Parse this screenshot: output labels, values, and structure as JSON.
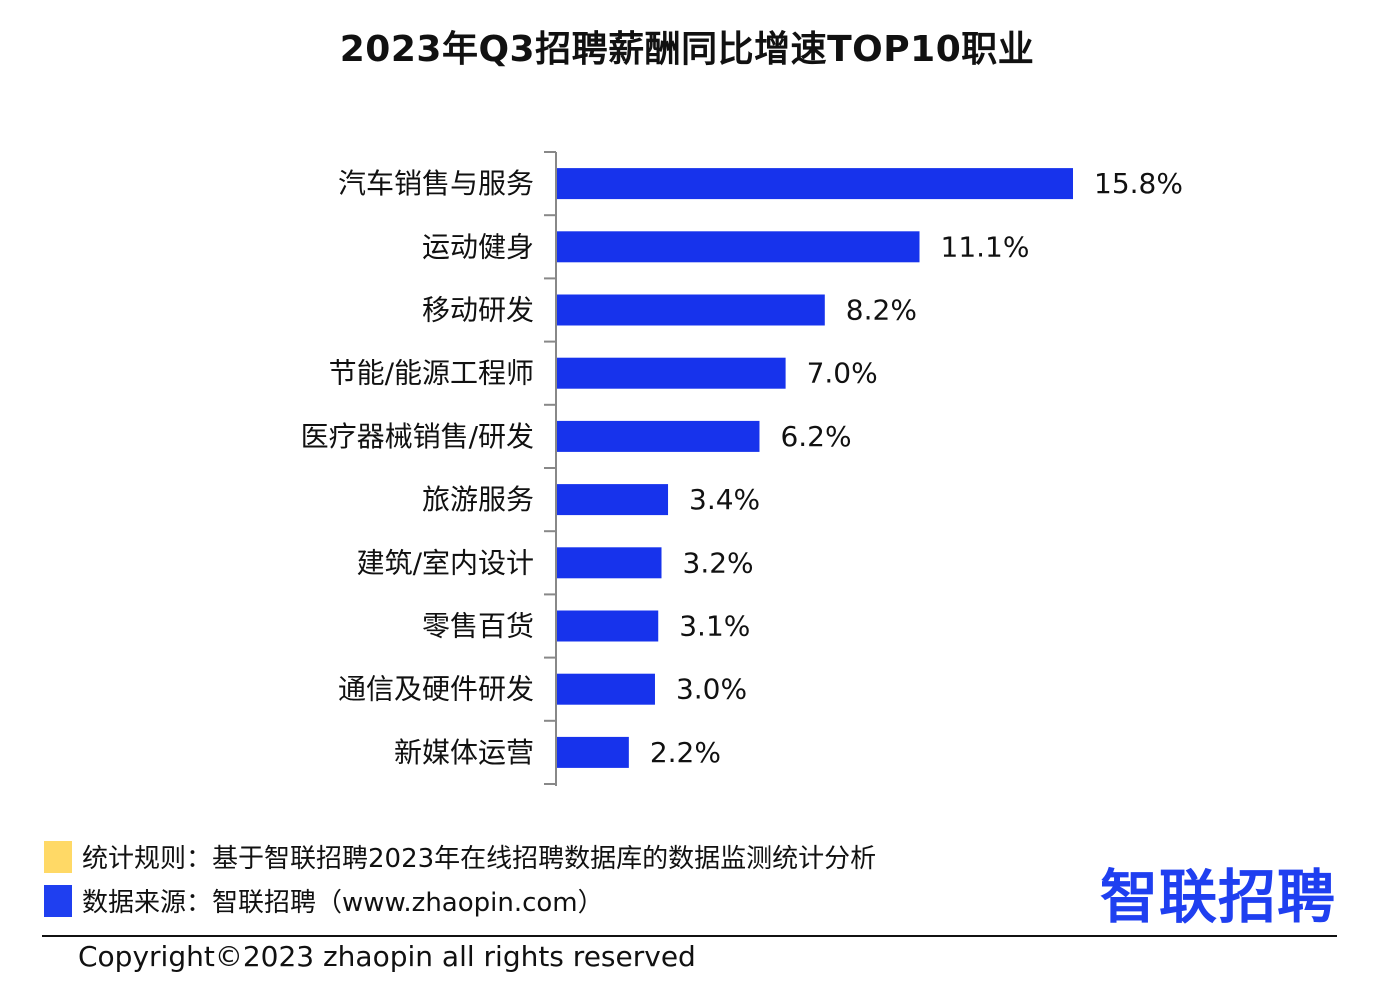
{
  "chart_data": {
    "type": "bar",
    "orientation": "horizontal",
    "title": "2023年Q3招聘薪酬同比增速TOP10职业",
    "categories": [
      "汽车销售与服务",
      "运动健身",
      "移动研发",
      "节能/能源工程师",
      "医疗器械销售/研发",
      "旅游服务",
      "建筑/室内设计",
      "零售百货",
      "通信及硬件研发",
      "新媒体运营"
    ],
    "values": [
      15.8,
      11.1,
      8.2,
      7.0,
      6.2,
      3.4,
      3.2,
      3.1,
      3.0,
      2.2
    ],
    "value_labels": [
      "15.8%",
      "11.1%",
      "8.2%",
      "7.0%",
      "6.2%",
      "3.4%",
      "3.2%",
      "3.1%",
      "3.0%",
      "2.2%"
    ],
    "unit": "%",
    "xlim": [
      0,
      15.8
    ],
    "bar_color": "#1733EC",
    "grid": false,
    "legend": "none"
  },
  "notes": {
    "rule": "统计规则：基于智联招聘2023年在线招聘数据库的数据监测统计分析",
    "source": "数据来源：智联招聘（www.zhaopin.com）"
  },
  "colors": {
    "rule_marker": "#FFD966",
    "source_marker": "#1F3FF0",
    "logo": "#1F3FF0"
  },
  "logo_text": "智联招聘",
  "copyright": "Copyright©2023 zhaopin all rights reserved"
}
